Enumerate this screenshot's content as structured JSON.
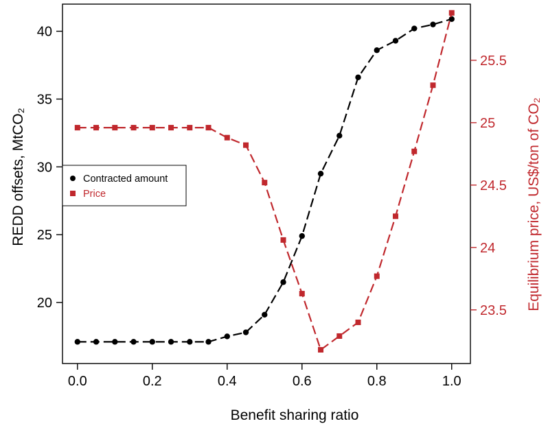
{
  "chart_data": {
    "type": "line",
    "x": [
      0.0,
      0.05,
      0.1,
      0.15,
      0.2,
      0.25,
      0.3,
      0.35,
      0.4,
      0.45,
      0.5,
      0.55,
      0.6,
      0.65,
      0.7,
      0.75,
      0.8,
      0.85,
      0.9,
      0.95,
      1.0
    ],
    "xlabel": "Benefit sharing ratio",
    "xlim": [
      -0.04,
      1.05
    ],
    "x_ticks": [
      0.0,
      0.2,
      0.4,
      0.6,
      0.8,
      1.0
    ],
    "x_tick_labels": [
      "0.0",
      "0.2",
      "0.4",
      "0.6",
      "0.8",
      "1.0"
    ],
    "y_left": {
      "label": "REDD offsets, MtCO₂",
      "lim": [
        15.5,
        42.0
      ],
      "ticks": [
        20,
        25,
        30,
        35,
        40
      ],
      "tick_labels": [
        "20",
        "25",
        "30",
        "35",
        "40"
      ]
    },
    "y_right": {
      "label": "Equilibrium price, US$/ton of CO₂",
      "lim": [
        23.07,
        25.95
      ],
      "ticks": [
        23.5,
        24,
        24.5,
        25,
        25.5
      ],
      "tick_labels": [
        "23.5",
        "24",
        "24.5",
        "25",
        "25.5"
      ],
      "color": "#c0282d"
    },
    "series": [
      {
        "name": "Contracted amount",
        "axis": "left",
        "marker": "circle",
        "color": "#000000",
        "values": [
          17.1,
          17.1,
          17.1,
          17.1,
          17.1,
          17.1,
          17.1,
          17.1,
          17.5,
          17.8,
          19.1,
          21.5,
          24.9,
          29.5,
          32.3,
          36.6,
          38.6,
          39.3,
          40.2,
          40.5,
          40.9
        ]
      },
      {
        "name": "Price",
        "axis": "right",
        "marker": "square",
        "color": "#c0282d",
        "values": [
          24.96,
          24.96,
          24.96,
          24.96,
          24.96,
          24.96,
          24.96,
          24.96,
          24.88,
          24.82,
          24.52,
          24.06,
          23.63,
          23.18,
          23.29,
          23.4,
          23.77,
          24.25,
          24.77,
          25.3,
          25.88
        ]
      }
    ],
    "legend_position": "center-left",
    "grid": false
  }
}
